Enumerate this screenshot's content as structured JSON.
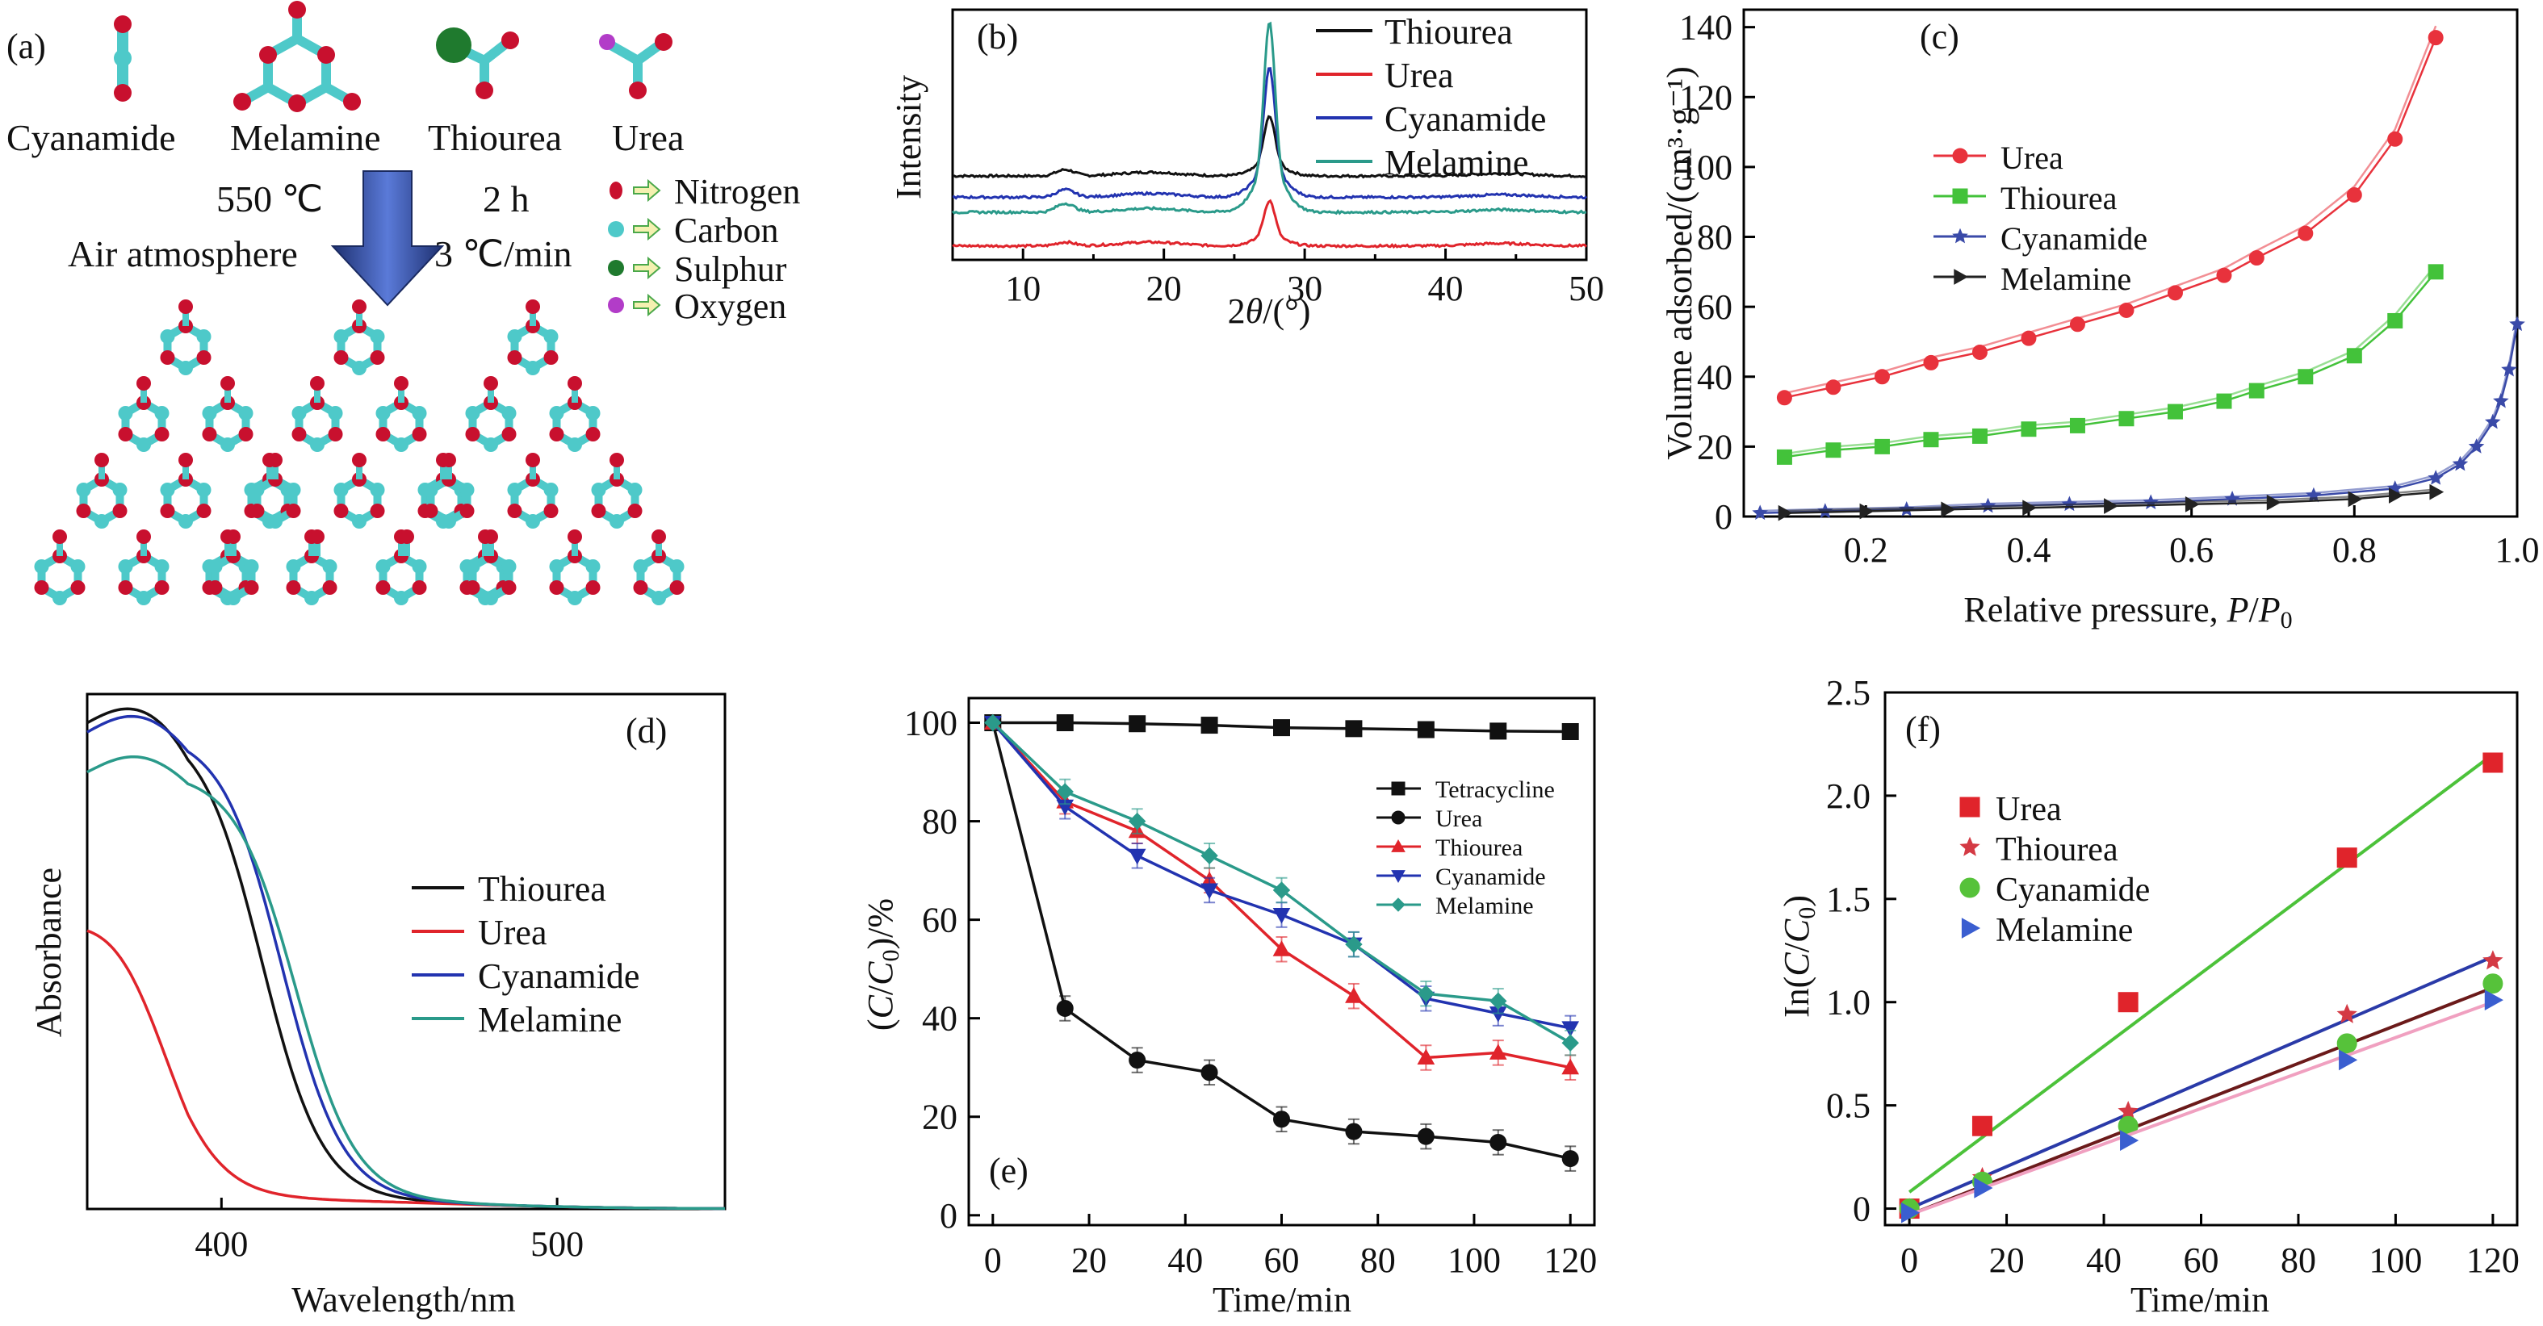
{
  "panel_a": {
    "label": "(a)",
    "molecules": [
      "Cyanamide",
      "Melamine",
      "Thiourea",
      "Urea"
    ],
    "conditions": {
      "temp": "550 ℃",
      "time": "2 h",
      "atm": "Air atmosphere",
      "rate": "3 ℃/min"
    },
    "legend": [
      {
        "name": "Nitrogen",
        "color": "#c8102e"
      },
      {
        "name": "Carbon",
        "color": "#4ec9c9"
      },
      {
        "name": "Sulphur",
        "color": "#1f7a2e"
      },
      {
        "name": "Oxygen",
        "color": "#b23cc8"
      }
    ]
  },
  "colors": {
    "black": "#111111",
    "red": "#e0242b",
    "blue": "#2233b0",
    "teal": "#2a9a8a",
    "urea_c": "#e8323c",
    "thiourea_c": "#43c23a",
    "cyan_c": "#3a4aa8",
    "mel_c": "#222222"
  },
  "chart_data": [
    {
      "id": "b",
      "label": "(b)",
      "type": "line",
      "xlabel": "2θ/(°)",
      "ylabel": "Intensity",
      "xlim": [
        5,
        50
      ],
      "xticks": [
        10,
        20,
        30,
        40,
        50
      ],
      "legend_placement": "top-right",
      "series": [
        {
          "name": "Thiourea",
          "baseline": 0.62,
          "peak": 1.0,
          "x13": 0.05,
          "color_key": "black"
        },
        {
          "name": "Urea",
          "baseline": 0.06,
          "peak": 0.35,
          "x13": 0.03,
          "color_key": "red"
        },
        {
          "name": "Cyanamide",
          "baseline": 0.45,
          "peak": 1.28,
          "x13": 0.06,
          "color_key": "blue"
        },
        {
          "name": "Melamine",
          "baseline": 0.33,
          "peak": 1.55,
          "x13": 0.07,
          "color_key": "teal"
        }
      ]
    },
    {
      "id": "c",
      "label": "(c)",
      "type": "line",
      "xlabel": "Relative pressure, P/P0",
      "ylabel": "Volume adsorbed/(cm³·g⁻¹)",
      "xlim": [
        0.05,
        1.0
      ],
      "ylim": [
        0,
        145
      ],
      "xticks": [
        0.2,
        0.4,
        0.6,
        0.8,
        1.0
      ],
      "yticks": [
        0,
        20,
        40,
        60,
        80,
        100,
        120,
        140
      ],
      "xtick_labels": [
        "0.2",
        "0.4",
        "0.6",
        "0.8",
        "1.0"
      ],
      "legend_placement": "upper-left",
      "series": [
        {
          "name": "Urea",
          "marker": "circle",
          "color_key": "urea_c",
          "x": [
            0.1,
            0.16,
            0.22,
            0.28,
            0.34,
            0.4,
            0.46,
            0.52,
            0.58,
            0.64,
            0.68,
            0.74,
            0.8,
            0.85,
            0.9
          ],
          "y": [
            34,
            37,
            40,
            44,
            47,
            51,
            55,
            59,
            64,
            69,
            74,
            81,
            92,
            108,
            137
          ]
        },
        {
          "name": "Thiourea",
          "marker": "square",
          "color_key": "thiourea_c",
          "x": [
            0.1,
            0.16,
            0.22,
            0.28,
            0.34,
            0.4,
            0.46,
            0.52,
            0.58,
            0.64,
            0.68,
            0.74,
            0.8,
            0.85,
            0.9
          ],
          "y": [
            17,
            19,
            20,
            22,
            23,
            25,
            26,
            28,
            30,
            33,
            36,
            40,
            46,
            56,
            70
          ]
        },
        {
          "name": "Cyanamide",
          "marker": "star",
          "color_key": "cyan_c",
          "x": [
            0.07,
            0.15,
            0.25,
            0.35,
            0.45,
            0.55,
            0.65,
            0.75,
            0.85,
            0.9,
            0.93,
            0.95,
            0.97,
            0.98,
            0.99,
            1.0
          ],
          "y": [
            1,
            1.5,
            2,
            3,
            3.5,
            4,
            5,
            6,
            8,
            11,
            15,
            20,
            27,
            33,
            42,
            55
          ]
        },
        {
          "name": "Melamine",
          "marker": "triangle-right",
          "color_key": "mel_c",
          "x": [
            0.1,
            0.2,
            0.3,
            0.4,
            0.5,
            0.6,
            0.7,
            0.8,
            0.85,
            0.9
          ],
          "y": [
            1,
            1.5,
            2,
            2.5,
            3,
            3.5,
            4,
            5,
            6,
            7
          ]
        }
      ]
    },
    {
      "id": "d",
      "label": "(d)",
      "type": "line",
      "xlabel": "Wavelength/nm",
      "ylabel": "Absorbance",
      "xlim": [
        360,
        550
      ],
      "xticks": [
        400,
        500
      ],
      "legend_placement": "middle-right",
      "series": [
        {
          "name": "Thiourea",
          "plateau": 0.95,
          "edge": 412,
          "color_key": "black"
        },
        {
          "name": "Urea",
          "plateau": 0.58,
          "edge": 382,
          "color_key": "red"
        },
        {
          "name": "Cyanamide",
          "plateau": 0.93,
          "edge": 418,
          "color_key": "blue"
        },
        {
          "name": "Melamine",
          "plateau": 0.85,
          "edge": 422,
          "color_key": "teal"
        }
      ]
    },
    {
      "id": "e",
      "label": "(e)",
      "type": "line",
      "xlabel": "Time/min",
      "ylabel": "(C/C0)/%",
      "xlim": [
        -5,
        125
      ],
      "ylim": [
        -2,
        105
      ],
      "xticks": [
        0,
        20,
        40,
        60,
        80,
        100,
        120
      ],
      "yticks": [
        0,
        20,
        40,
        60,
        80,
        100
      ],
      "legend_placement": "right",
      "x": [
        0,
        15,
        30,
        45,
        60,
        75,
        90,
        105,
        120
      ],
      "series": [
        {
          "name": "Tetracycline",
          "marker": "square",
          "color_key": "black",
          "y": [
            100,
            100,
            99.8,
            99.5,
            99,
            98.8,
            98.6,
            98.3,
            98.2
          ]
        },
        {
          "name": "Urea",
          "marker": "circle",
          "color_key": "black",
          "y": [
            100,
            42,
            31.5,
            29,
            19.5,
            17,
            16,
            14.8,
            11.5
          ]
        },
        {
          "name": "Thiourea",
          "marker": "triangle-up",
          "color_key": "red",
          "y": [
            100,
            84,
            78,
            68,
            54,
            44.5,
            32,
            33,
            30
          ]
        },
        {
          "name": "Cyanamide",
          "marker": "triangle-down",
          "color_key": "blue",
          "y": [
            100,
            83,
            73,
            66,
            61,
            55,
            44,
            41,
            38
          ]
        },
        {
          "name": "Melamine",
          "marker": "diamond",
          "color_key": "teal",
          "y": [
            100,
            86,
            80,
            73,
            66,
            55,
            45,
            43.5,
            35
          ]
        }
      ]
    },
    {
      "id": "f",
      "label": "(f)",
      "type": "scatter",
      "xlabel": "Time/min",
      "ylabel": "In(C/C0)",
      "xlim": [
        -5,
        125
      ],
      "ylim": [
        -0.08,
        2.5
      ],
      "xticks": [
        0,
        20,
        40,
        60,
        80,
        100,
        120
      ],
      "yticks": [
        0,
        0.5,
        1.0,
        1.5,
        2.0,
        2.5
      ],
      "ytick_labels": [
        "0",
        "0.5",
        "1.0",
        "1.5",
        "2.0",
        "2.5"
      ],
      "legend_placement": "upper-left",
      "x": [
        0,
        15,
        45,
        90,
        120
      ],
      "series": [
        {
          "name": "Urea",
          "marker": "square",
          "color": "#e0242b",
          "y": [
            0,
            0.4,
            1.0,
            1.7,
            2.16
          ],
          "fit": {
            "color": "#4cc23a",
            "y0": 0.08,
            "y1": 2.2
          }
        },
        {
          "name": "Thiourea",
          "marker": "star",
          "color": "#d43a44",
          "y": [
            0,
            0.15,
            0.47,
            0.94,
            1.2
          ],
          "fit": {
            "color": "#2a3aa8",
            "y0": 0.0,
            "y1": 1.22
          }
        },
        {
          "name": "Cyanamide",
          "marker": "circle",
          "color": "#56c23a",
          "y": [
            0,
            0.13,
            0.4,
            0.8,
            1.09
          ],
          "fit": {
            "color": "#6b1a1a",
            "y0": -0.03,
            "y1": 1.07
          }
        },
        {
          "name": "Melamine",
          "marker": "triangle-right",
          "color": "#3a5ed0",
          "y": [
            -0.02,
            0.1,
            0.33,
            0.72,
            1.01
          ],
          "fit": {
            "color": "#f0a0c0",
            "y0": -0.03,
            "y1": 1.0
          }
        }
      ]
    }
  ]
}
